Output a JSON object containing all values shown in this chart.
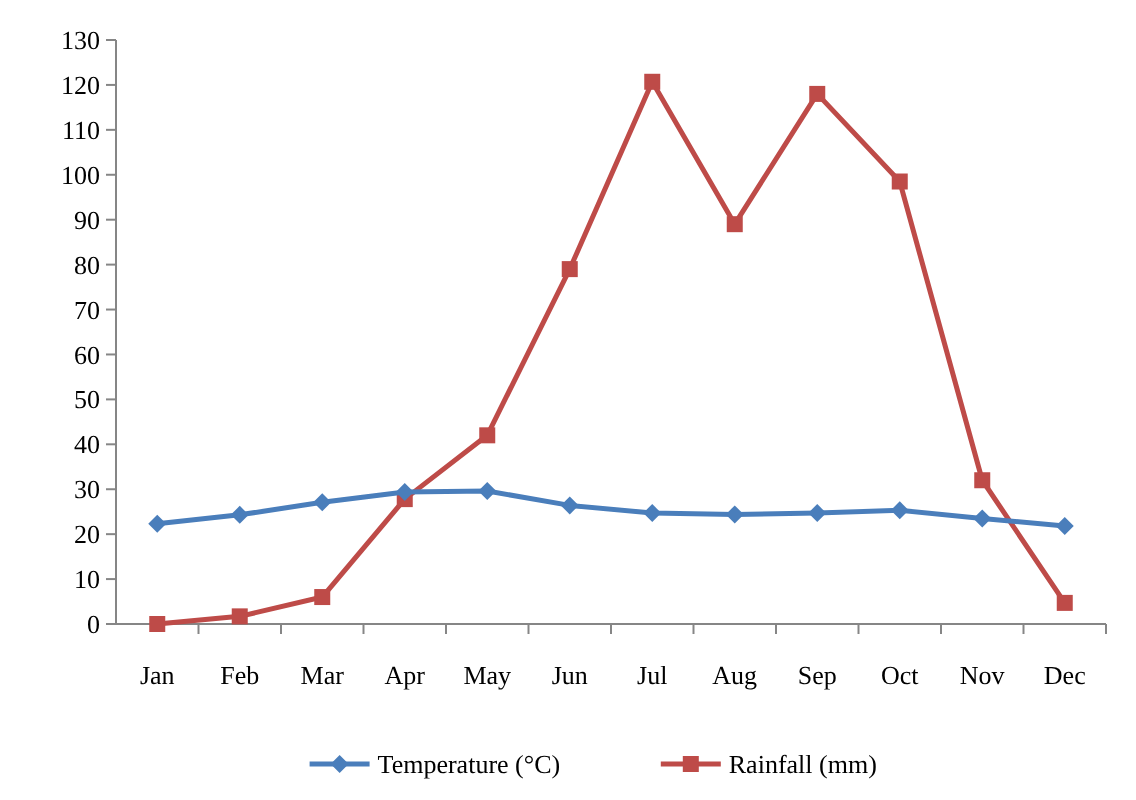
{
  "chart_data": {
    "type": "line",
    "categories": [
      "Jan",
      "Feb",
      "Mar",
      "Apr",
      "May",
      "Jun",
      "Jul",
      "Aug",
      "Sep",
      "Oct",
      "Nov",
      "Dec"
    ],
    "series": [
      {
        "name": "Temperature (°C)",
        "color": "#4a7ebb",
        "marker": "diamond",
        "values": [
          22.3,
          24.3,
          27.1,
          29.4,
          29.6,
          26.4,
          24.7,
          24.4,
          24.7,
          25.3,
          23.5,
          21.8
        ]
      },
      {
        "name": "Rainfall (mm)",
        "color": "#be4b48",
        "marker": "square",
        "values": [
          0,
          1.7,
          6,
          27.8,
          42,
          79,
          120.7,
          89,
          118,
          98.5,
          32,
          4.7
        ]
      }
    ],
    "ylim": [
      0,
      130
    ],
    "yticks": [
      0,
      10,
      20,
      30,
      40,
      50,
      60,
      70,
      80,
      90,
      100,
      110,
      120,
      130
    ],
    "grid": false,
    "legend": "bottom"
  }
}
